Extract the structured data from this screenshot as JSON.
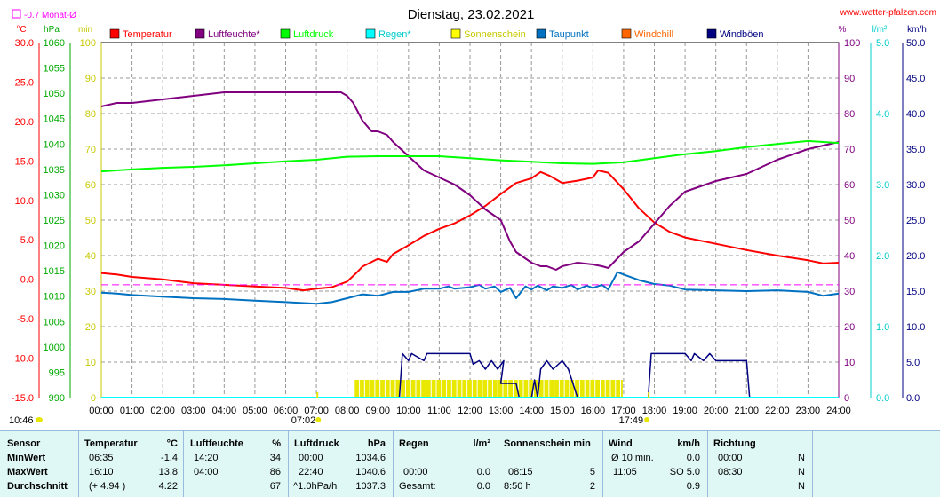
{
  "header": {
    "title": "Dienstag, 23.02.2021",
    "site": "www.wetter-pfalzen.com",
    "month_avg": "-0.7 Monat-Ø"
  },
  "chart_data": {
    "type": "line",
    "title": "Dienstag, 23.02.2021",
    "xlabel": "",
    "x_ticks": [
      "00:00",
      "01:00",
      "02:00",
      "03:00",
      "04:00",
      "05:00",
      "06:00",
      "07:00",
      "08:00",
      "09:00",
      "10:00",
      "11:00",
      "12:00",
      "13:00",
      "14:00",
      "15:00",
      "16:00",
      "17:00",
      "18:00",
      "19:00",
      "20:00",
      "21:00",
      "22:00",
      "23:00",
      "24:00"
    ],
    "x_range": [
      0,
      24
    ],
    "axes": {
      "temp": {
        "unit": "°C",
        "range": [
          -15,
          30
        ],
        "ticks": [
          "30.0",
          "25.0",
          "20.0",
          "15.0",
          "10.0",
          "5.0",
          "0.0",
          "-5.0",
          "-10.0",
          "-15.0"
        ],
        "color": "#ff0000"
      },
      "press": {
        "unit": "hPa",
        "range": [
          990,
          1060
        ],
        "ticks": [
          "1060",
          "1055",
          "1050",
          "1045",
          "1040",
          "1035",
          "1030",
          "1025",
          "1020",
          "1015",
          "1010",
          "1005",
          "1000",
          "995",
          "990"
        ],
        "color": "#00cc00"
      },
      "sun": {
        "unit": "min",
        "range": [
          0,
          100
        ],
        "ticks": [
          "100",
          "90",
          "80",
          "70",
          "60",
          "50",
          "40",
          "30",
          "20",
          "10",
          "0"
        ],
        "color": "#e6e600"
      },
      "hum": {
        "unit": "%",
        "range": [
          0,
          100
        ],
        "ticks": [
          "100",
          "90",
          "80",
          "70",
          "60",
          "50",
          "40",
          "30",
          "20",
          "10",
          "0"
        ],
        "color": "#800080"
      },
      "rain": {
        "unit": "l/m²",
        "range": [
          0,
          5
        ],
        "ticks": [
          "5.0",
          "4.0",
          "3.0",
          "2.0",
          "1.0",
          "0.0"
        ],
        "color": "#00cccc"
      },
      "wind": {
        "unit": "km/h",
        "range": [
          0,
          50
        ],
        "ticks": [
          "50.0",
          "45.0",
          "40.0",
          "35.0",
          "30.0",
          "25.0",
          "20.0",
          "15.0",
          "10.0",
          "5.0",
          "0.0"
        ],
        "color": "#000080"
      }
    },
    "legend": [
      {
        "name": "Temperatur",
        "color": "#ff0000"
      },
      {
        "name": "Luftfeuchte*",
        "color": "#800080"
      },
      {
        "name": "Luftdruck",
        "color": "#00ff00"
      },
      {
        "name": "Regen*",
        "color": "#00ffff"
      },
      {
        "name": "Sonnenschein",
        "color": "#ffff00"
      },
      {
        "name": "Taupunkt",
        "color": "#0070c0"
      },
      {
        "name": "Windchill",
        "color": "#ff6600"
      },
      {
        "name": "Windböen",
        "color": "#000080"
      }
    ],
    "series": [
      {
        "name": "Temperatur",
        "axis": "temp",
        "color": "#ff0000",
        "x": [
          0,
          0.5,
          1,
          2,
          3,
          4,
          5,
          6,
          6.58,
          7,
          7.5,
          8,
          8.3,
          8.5,
          9,
          9.3,
          9.5,
          10,
          10.5,
          11,
          11.5,
          12,
          12.5,
          13,
          13.5,
          14,
          14.3,
          14.6,
          15,
          15.5,
          16,
          16.17,
          16.5,
          17,
          17.5,
          18,
          18.5,
          19,
          20,
          21,
          22,
          23,
          23.5,
          24
        ],
        "y": [
          0.8,
          0.6,
          0.3,
          0,
          -0.5,
          -0.7,
          -0.9,
          -1.1,
          -1.4,
          -1.2,
          -1.0,
          -0.3,
          0.8,
          1.6,
          2.6,
          2.2,
          3.2,
          4.3,
          5.5,
          6.4,
          7.1,
          8.1,
          9.3,
          10.8,
          12.2,
          12.8,
          13.6,
          13.1,
          12.2,
          12.5,
          12.9,
          13.8,
          13.5,
          11.4,
          9.0,
          7.2,
          6.0,
          5.3,
          4.5,
          3.7,
          3.0,
          2.4,
          2.0,
          2.1
        ]
      },
      {
        "name": "Luftfeuchte",
        "axis": "hum",
        "color": "#800080",
        "x": [
          0,
          0.5,
          1,
          2,
          3,
          4,
          5,
          6,
          7,
          7.5,
          7.8,
          8,
          8.2,
          8.5,
          8.8,
          9,
          9.3,
          9.5,
          10,
          10.5,
          11,
          11.5,
          12,
          12.5,
          13,
          13.3,
          13.5,
          14,
          14.3,
          14.5,
          14.8,
          15,
          15.5,
          16,
          16.3,
          16.5,
          17,
          17.5,
          18,
          18.5,
          19,
          20,
          21,
          22,
          23,
          23.5,
          24
        ],
        "y": [
          82,
          83,
          83,
          84,
          85,
          86,
          86,
          86,
          86,
          86,
          86,
          85,
          83,
          78,
          75,
          75,
          74,
          72,
          68,
          64,
          62,
          60,
          57,
          53,
          50,
          44,
          41,
          38,
          37,
          37,
          36,
          37,
          38,
          37.5,
          37,
          36.5,
          41,
          44,
          49,
          54,
          58,
          61,
          63,
          67,
          70,
          71,
          72
        ]
      },
      {
        "name": "Luftdruck",
        "axis": "press",
        "color": "#00ff00",
        "x": [
          0,
          1,
          2,
          3,
          4,
          5,
          6,
          7,
          8,
          9,
          10,
          11,
          12,
          13,
          14,
          15,
          16,
          17,
          18,
          19,
          20,
          21,
          22,
          23,
          24
        ],
        "y": [
          1034.6,
          1035,
          1035.3,
          1035.5,
          1035.8,
          1036.2,
          1036.6,
          1036.9,
          1037.5,
          1037.6,
          1037.6,
          1037.6,
          1037.2,
          1036.8,
          1036.5,
          1036.2,
          1036.1,
          1036.4,
          1037.2,
          1038,
          1038.6,
          1039.4,
          1040,
          1040.6,
          1040.2
        ]
      },
      {
        "name": "Taupunkt",
        "axis": "temp",
        "color": "#0070c0",
        "x": [
          0,
          0.5,
          1,
          2,
          3,
          4,
          5,
          6,
          7,
          7.5,
          8,
          8.5,
          9,
          9.5,
          10,
          10.5,
          11,
          11.3,
          11.5,
          12,
          12.3,
          12.5,
          12.8,
          13,
          13.3,
          13.5,
          13.8,
          14,
          14.2,
          14.5,
          14.7,
          15,
          15.3,
          15.5,
          15.8,
          16,
          16.3,
          16.5,
          16.8,
          17,
          17.5,
          18,
          18.5,
          19,
          20,
          21,
          22,
          23,
          23.5,
          24
        ],
        "y": [
          -1.7,
          -1.8,
          -2.0,
          -2.2,
          -2.4,
          -2.5,
          -2.7,
          -2.9,
          -3.1,
          -2.9,
          -2.4,
          -1.9,
          -2.1,
          -1.6,
          -1.6,
          -1.2,
          -1.2,
          -0.9,
          -1.2,
          -1.0,
          -0.7,
          -1.2,
          -0.9,
          -1.6,
          -1.1,
          -2.4,
          -0.9,
          -1.3,
          -0.8,
          -1.4,
          -0.9,
          -1.1,
          -0.7,
          -1.3,
          -0.8,
          -1.1,
          -0.7,
          -1.3,
          0.9,
          0.6,
          -0.1,
          -0.6,
          -0.8,
          -1.3,
          -1.4,
          -1.5,
          -1.4,
          -1.6,
          -2.1,
          -1.8
        ]
      },
      {
        "name": "Windböen",
        "axis": "wind",
        "color": "#000080",
        "x": [
          0,
          9.7,
          9.8,
          10,
          10.1,
          10.5,
          10.6,
          10.8,
          11,
          11.5,
          12,
          12.1,
          12.3,
          12.5,
          12.7,
          12.9,
          13.1,
          13,
          13.2,
          13.5,
          13.6,
          14,
          14.1,
          14.2,
          14.3,
          14.5,
          14.7,
          15,
          15.2,
          15.5,
          17.8,
          17.9,
          18.4,
          19,
          19.2,
          19.3,
          19.6,
          19.8,
          20,
          20.4,
          20.6,
          21,
          21.1,
          24
        ],
        "y": [
          0,
          0,
          6.2,
          5.2,
          6.2,
          5.2,
          6.2,
          6.2,
          6.2,
          6.2,
          6.2,
          4.7,
          5.2,
          4.0,
          5.2,
          4.0,
          5.2,
          2.0,
          2.0,
          2.0,
          0,
          0,
          2.5,
          0,
          4.0,
          5.2,
          4.0,
          5.2,
          4.0,
          0,
          0,
          6.2,
          6.2,
          6.2,
          5.2,
          6.2,
          5.2,
          6.2,
          5.2,
          5.2,
          5.2,
          5.2,
          0,
          0
        ]
      },
      {
        "name": "Regen",
        "axis": "rain",
        "color": "#00ffff",
        "x": [
          0,
          24
        ],
        "y": [
          0,
          0
        ]
      },
      {
        "name": "Monat-Ø",
        "axis": "temp",
        "color": "#ff00ff",
        "x": [
          0,
          24
        ],
        "y": [
          -0.7,
          -0.7
        ]
      }
    ],
    "sunshine": {
      "axis": "sun",
      "start": 8.25,
      "end": 17.0,
      "value": 5,
      "color": "#ffff00"
    },
    "markers": {
      "sunrise": "07:02",
      "sunset": "17:49",
      "moon": "10:46"
    }
  },
  "stats": {
    "headers": {
      "sensor": "Sensor",
      "temp": "Temperatur",
      "temp_u": "°C",
      "hum": "Luftfeuchte",
      "hum_u": "%",
      "press": "Luftdruck",
      "press_u": "hPa",
      "rain": "Regen",
      "rain_u": "l/m²",
      "sun": "Sonnenschein min",
      "wind": "Wind",
      "wind_u": "km/h",
      "dir": "Richtung"
    },
    "rows": [
      {
        "label": "MinWert",
        "temp_t": "06:35",
        "temp_v": "-1.4",
        "hum_t": "14:20",
        "hum_v": "34",
        "press_t": "00:00",
        "press_v": "1034.6",
        "rain_t": "",
        "rain_v": "",
        "sun_t": "",
        "sun_v": "",
        "wind_t": "Ø 10 min.",
        "wind_v": "0.0",
        "dir_t": "00:00",
        "dir_v": "N"
      },
      {
        "label": "MaxWert",
        "temp_t": "16:10",
        "temp_v": "13.8",
        "hum_t": "04:00",
        "hum_v": "86",
        "press_t": "22:40",
        "press_v": "1040.6",
        "rain_t": "00:00",
        "rain_v": "0.0",
        "sun_t": "08:15",
        "sun_v": "5",
        "wind_t": "11:05",
        "wind_v": "SO 5.0",
        "dir_t": "08:30",
        "dir_v": "N"
      },
      {
        "label": "Durchschnitt",
        "temp_t": "(+ 4.94 )",
        "temp_v": "4.22",
        "hum_t": "",
        "hum_v": "67",
        "press_t": "^1.0hPa/h",
        "press_v": "1037.3",
        "rain_t": "Gesamt:",
        "rain_v": "0.0",
        "sun_t": "8:50 h",
        "sun_v": "2",
        "wind_t": "",
        "wind_v": "0.9",
        "dir_t": "",
        "dir_v": "N"
      }
    ]
  }
}
